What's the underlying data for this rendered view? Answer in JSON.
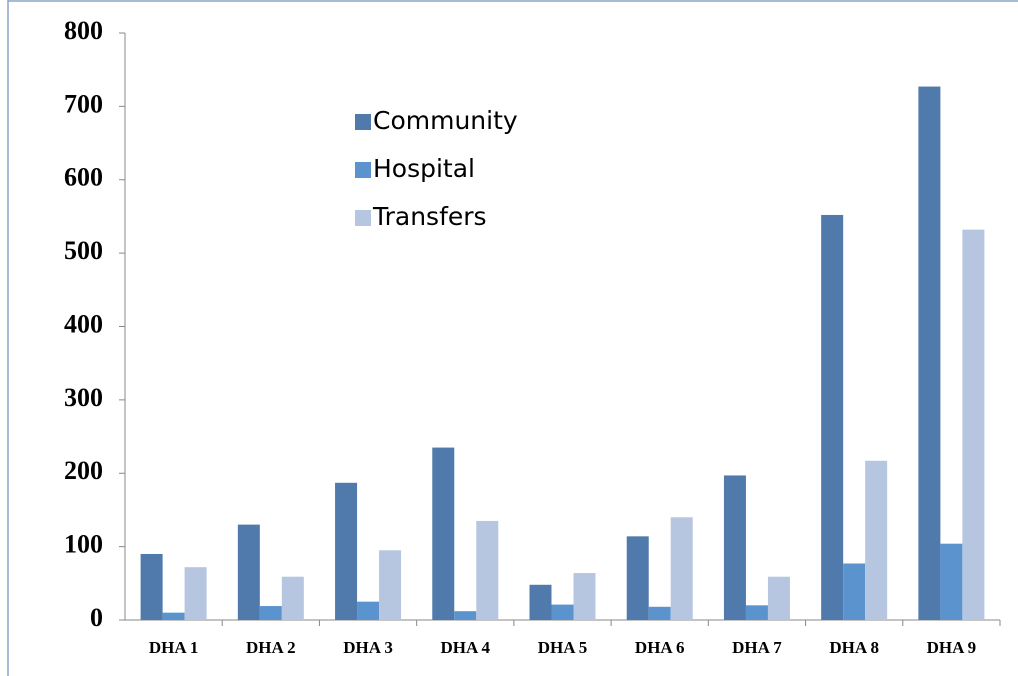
{
  "chart_data": {
    "type": "bar",
    "categories": [
      "DHA 1",
      "DHA 2",
      "DHA 3",
      "DHA 4",
      "DHA 5",
      "DHA 6",
      "DHA 7",
      "DHA 8",
      "DHA 9"
    ],
    "series": [
      {
        "name": "Community",
        "color": "#4f7aab",
        "values": [
          90,
          130,
          187,
          235,
          48,
          114,
          197,
          552,
          727
        ]
      },
      {
        "name": "Hospital",
        "color": "#5b93cf",
        "values": [
          10,
          19,
          25,
          12,
          21,
          18,
          20,
          77,
          104
        ]
      },
      {
        "name": "Transfers",
        "color": "#b7c6e0",
        "values": [
          72,
          59,
          95,
          135,
          64,
          140,
          59,
          217,
          532
        ]
      }
    ],
    "ylim": [
      0,
      800
    ],
    "yticks": [
      0,
      100,
      200,
      300,
      400,
      500,
      600,
      700,
      800
    ],
    "grid": false
  }
}
